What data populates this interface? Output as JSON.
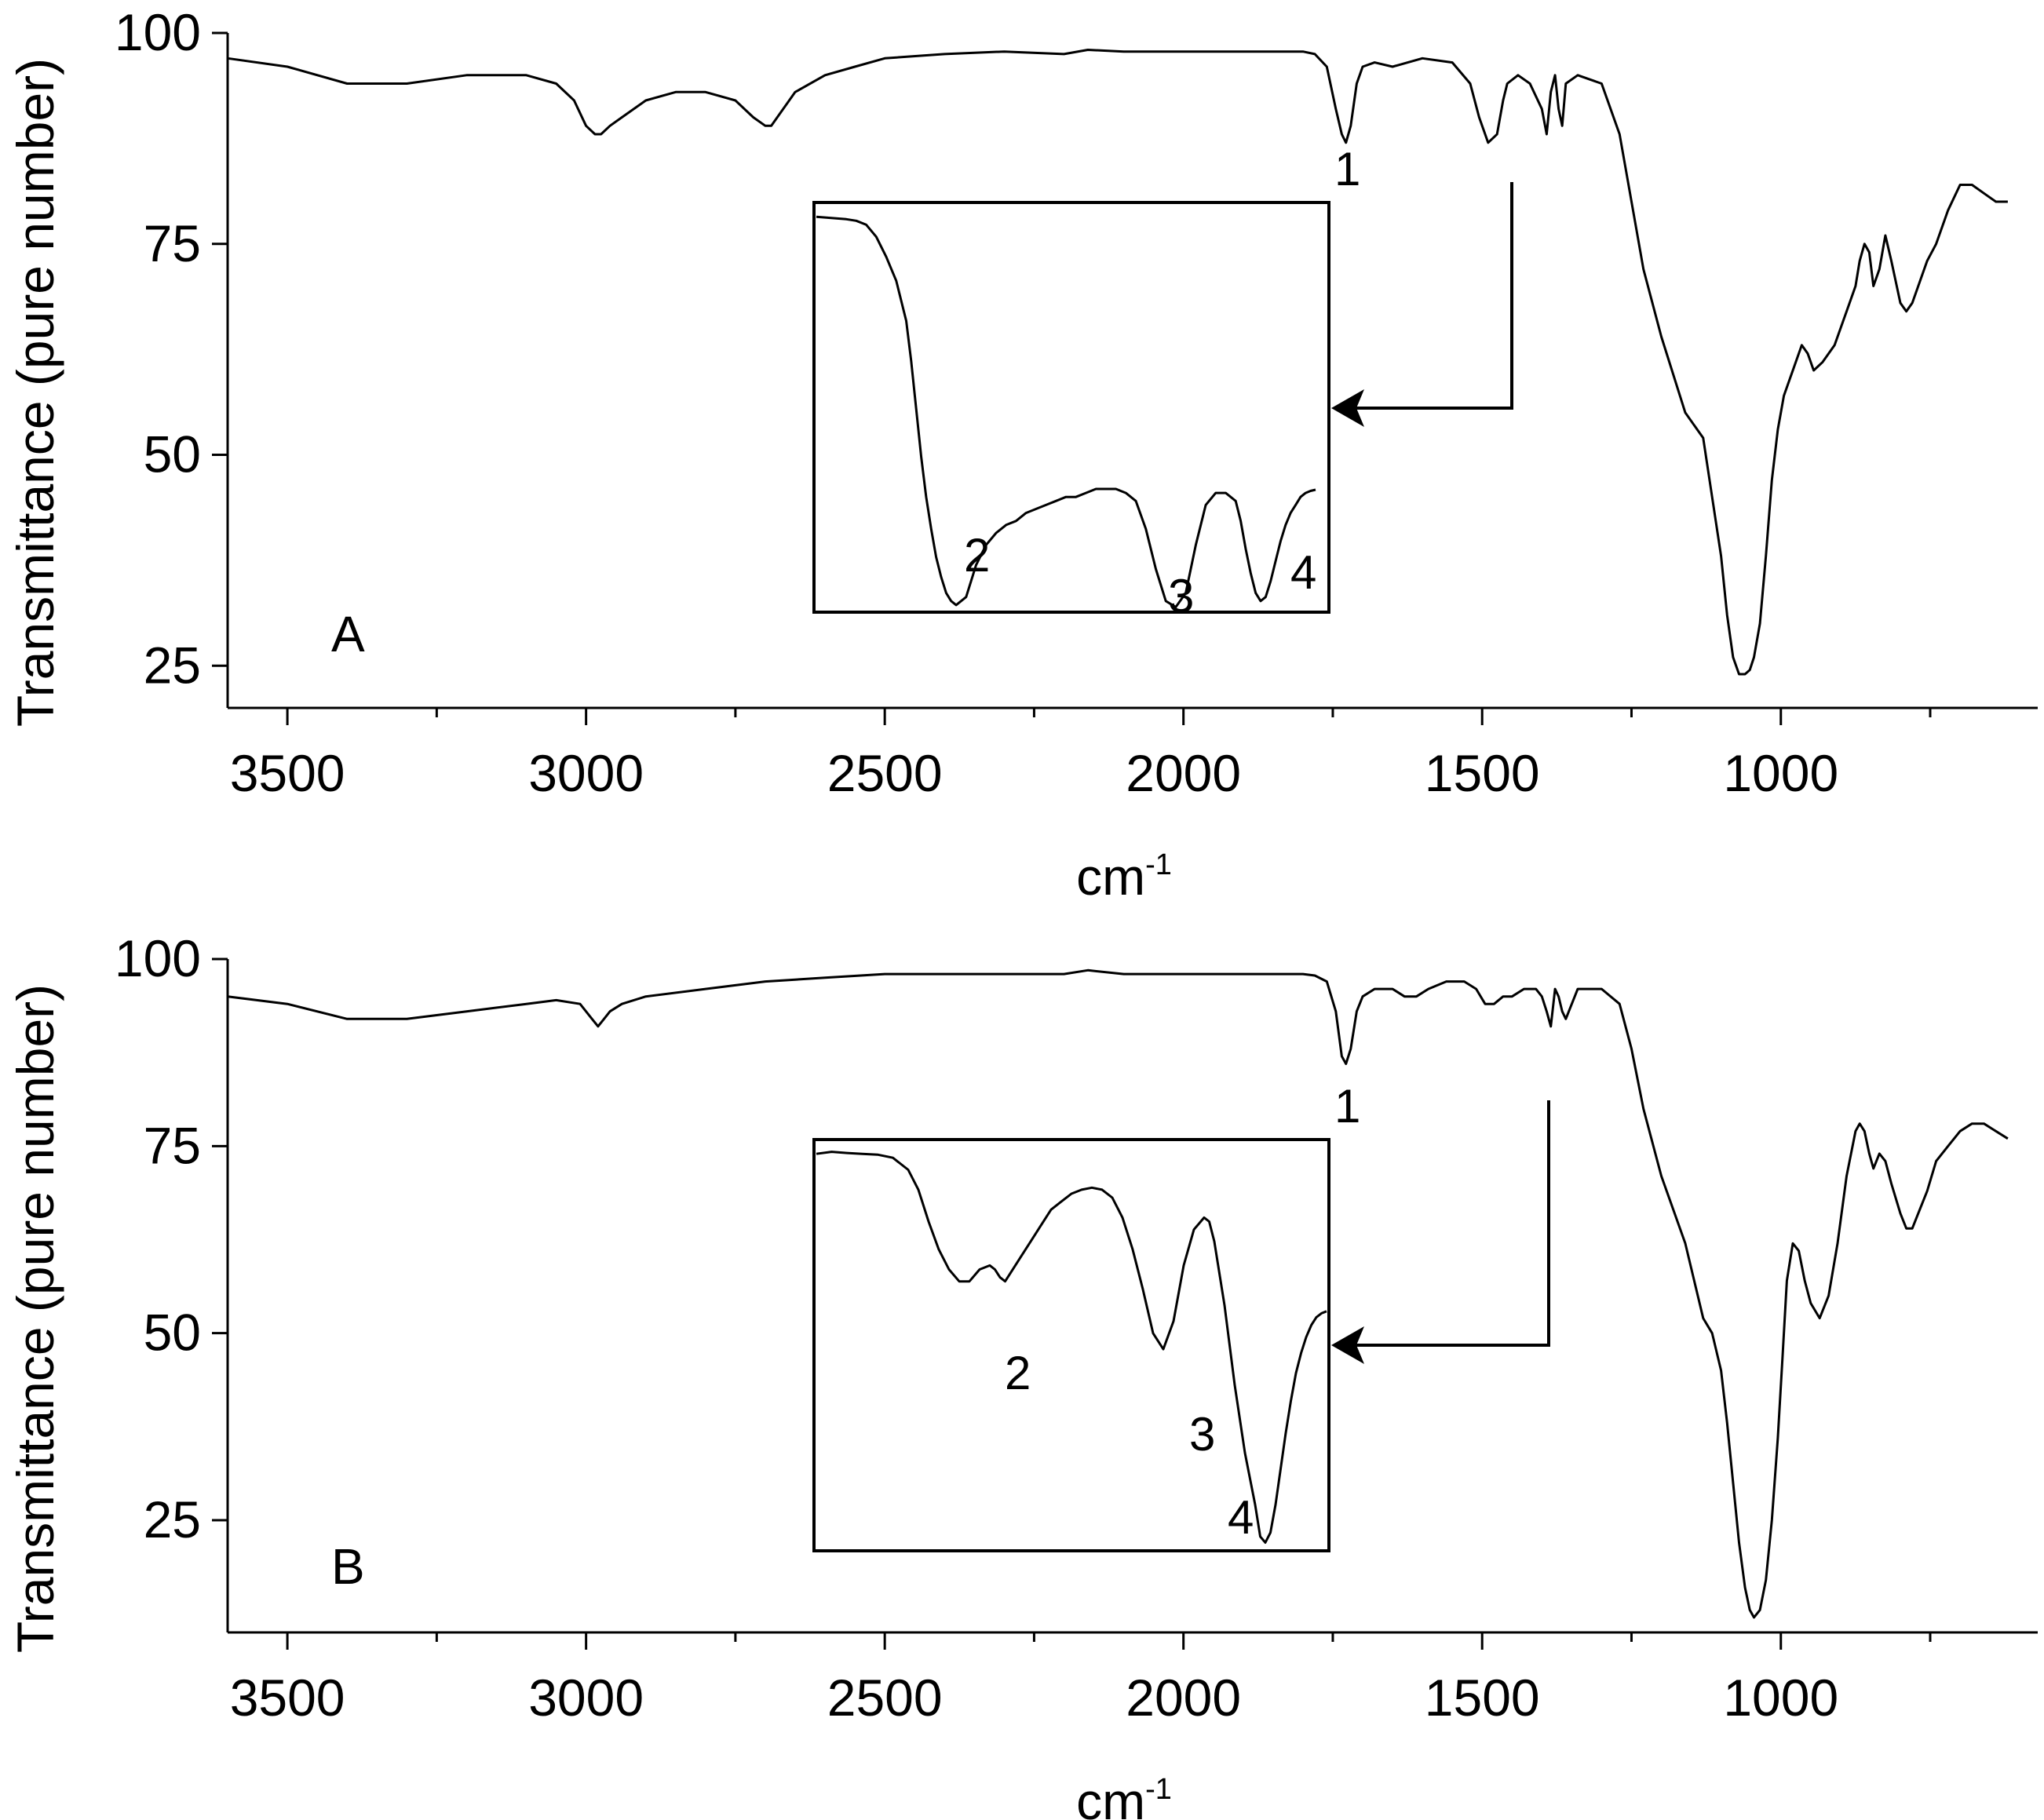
{
  "chart_data": [
    {
      "type": "line",
      "panel_label": "A",
      "xlabel": "cm",
      "xlabel_superscript": "-1",
      "ylabel": "Transmittance (pure number)",
      "xlim": [
        3600,
        570
      ],
      "ylim": [
        20,
        100
      ],
      "x_ticks": [
        3500,
        3000,
        2500,
        2000,
        1500,
        1000
      ],
      "y_ticks": [
        100,
        75,
        50,
        25
      ],
      "series": [
        {
          "x": [
            3600,
            3500,
            3400,
            3300,
            3200,
            3100,
            3050,
            3020,
            3000,
            2985,
            2975,
            2960,
            2940,
            2900,
            2850,
            2800,
            2750,
            2720,
            2700,
            2690,
            2680,
            2650,
            2600,
            2550,
            2500,
            2400,
            2300,
            2200,
            2160,
            2100,
            2000,
            1900,
            1800,
            1780,
            1760,
            1745,
            1735,
            1728,
            1720,
            1710,
            1700,
            1680,
            1650,
            1600,
            1550,
            1520,
            1505,
            1490,
            1475,
            1465,
            1458,
            1440,
            1420,
            1400,
            1392,
            1385,
            1378,
            1372,
            1366,
            1360,
            1340,
            1300,
            1270,
            1250,
            1230,
            1200,
            1160,
            1130,
            1115,
            1100,
            1090,
            1080,
            1070,
            1060,
            1052,
            1045,
            1035,
            1025,
            1015,
            1005,
            995,
            985,
            975,
            965,
            955,
            945,
            930,
            910,
            890,
            875,
            868,
            860,
            852,
            845,
            835,
            825,
            815,
            800,
            790,
            780,
            770,
            755,
            740,
            720,
            700,
            680,
            660,
            640,
            620
          ],
          "y": [
            97,
            96,
            94,
            94,
            95,
            95,
            94,
            92,
            89,
            88,
            88,
            89,
            90,
            92,
            93,
            93,
            92,
            90,
            89,
            89,
            90,
            93,
            95,
            96,
            97,
            97.5,
            97.8,
            97.5,
            98,
            97.8,
            97.8,
            97.8,
            97.8,
            97.5,
            96,
            91,
            88,
            87,
            89,
            94,
            96,
            96.5,
            96,
            97,
            96.5,
            94,
            90,
            87,
            88,
            92,
            94,
            95,
            94,
            91,
            88,
            93,
            95,
            91,
            89,
            94,
            95,
            94,
            88,
            80,
            72,
            64,
            55,
            52,
            45,
            38,
            31,
            26,
            24,
            24,
            24.5,
            26,
            30,
            38,
            47,
            53,
            57,
            59,
            61,
            63,
            62,
            60,
            61,
            63,
            67,
            70,
            73,
            75,
            74,
            70,
            72,
            76,
            73,
            68,
            67,
            68,
            70,
            73,
            75,
            79,
            82,
            82,
            81,
            80,
            80
          ]
        }
      ],
      "inset": {
        "series": [
          {
            "x": [
              0,
              2,
              4,
              6,
              8,
              10,
              12,
              14,
              16,
              18,
              19,
              20,
              21,
              22,
              23,
              24,
              25,
              26,
              27,
              28,
              30,
              32,
              34,
              36,
              38,
              40,
              42,
              44,
              46,
              48,
              50,
              52,
              54,
              56,
              58,
              60,
              62,
              64,
              66,
              68,
              70,
              72,
              74,
              76,
              78,
              80,
              82,
              84,
              85,
              86,
              87,
              88,
              89,
              90,
              91,
              92,
              93,
              94,
              95,
              96,
              97,
              98,
              99,
              100
            ],
            "y": [
              98,
              97.8,
              97.6,
              97.4,
              97,
              96,
              93,
              88,
              82,
              72,
              62,
              50,
              38,
              28,
              20,
              13,
              8,
              4,
              2,
              1,
              3,
              11,
              16,
              19,
              21,
              22,
              24,
              25,
              26,
              27,
              28,
              28,
              29,
              30,
              30,
              30,
              29,
              27,
              20,
              10,
              2,
              0.5,
              4,
              16,
              26,
              29,
              29,
              27,
              22,
              15,
              9,
              4,
              2,
              3,
              7,
              12,
              17,
              21,
              24,
              26,
              28,
              29,
              29.5,
              29.8
            ]
          }
        ]
      },
      "peak_labels": [
        "1",
        "2",
        "3",
        "4"
      ]
    },
    {
      "type": "line",
      "panel_label": "B",
      "xlabel": "cm",
      "xlabel_superscript": "-1",
      "ylabel": "Transmittance (pure number)",
      "xlim": [
        3600,
        570
      ],
      "ylim": [
        10,
        100
      ],
      "x_ticks": [
        3500,
        3000,
        2500,
        2000,
        1500,
        1000
      ],
      "y_ticks": [
        100,
        75,
        50,
        25
      ],
      "series": [
        {
          "x": [
            3600,
            3500,
            3400,
            3300,
            3200,
            3100,
            3050,
            3010,
            2990,
            2980,
            2970,
            2960,
            2940,
            2900,
            2800,
            2700,
            2600,
            2500,
            2400,
            2300,
            2200,
            2160,
            2100,
            2000,
            1900,
            1800,
            1780,
            1760,
            1745,
            1735,
            1728,
            1720,
            1710,
            1700,
            1680,
            1650,
            1630,
            1610,
            1590,
            1560,
            1530,
            1510,
            1495,
            1480,
            1465,
            1450,
            1430,
            1410,
            1400,
            1392,
            1385,
            1378,
            1372,
            1366,
            1360,
            1340,
            1300,
            1270,
            1250,
            1230,
            1200,
            1160,
            1130,
            1115,
            1100,
            1090,
            1080,
            1070,
            1060,
            1052,
            1045,
            1035,
            1025,
            1015,
            1005,
            997,
            990,
            980,
            970,
            960,
            950,
            935,
            920,
            905,
            890,
            875,
            868,
            860,
            852,
            845,
            835,
            825,
            815,
            800,
            790,
            780,
            770,
            755,
            740,
            720,
            700,
            680,
            660,
            640,
            620
          ],
          "y": [
            95,
            94,
            92,
            92,
            93,
            94,
            94.5,
            94,
            92,
            91,
            92,
            93,
            94,
            95,
            96,
            97,
            97.5,
            98,
            98,
            98,
            98,
            98.5,
            98,
            98,
            98,
            98,
            97.8,
            97,
            93,
            87,
            86,
            88,
            93,
            95,
            96,
            96,
            95,
            95,
            96,
            97,
            97,
            96,
            94,
            94,
            95,
            95,
            96,
            96,
            95,
            93,
            91,
            96,
            95,
            93,
            92,
            96,
            96,
            94,
            88,
            80,
            71,
            62,
            52,
            50,
            45,
            38,
            30,
            22,
            16,
            13,
            12,
            13,
            17,
            25,
            36,
            47,
            57,
            62,
            61,
            57,
            54,
            52,
            55,
            62,
            71,
            77,
            78,
            77,
            74,
            72,
            74,
            73,
            70,
            66,
            64,
            64,
            66,
            69,
            73,
            75,
            77,
            78,
            78,
            77,
            76
          ]
        }
      ],
      "inset": {
        "series": [
          {
            "x": [
              0,
              3,
              6,
              9,
              12,
              15,
              18,
              20,
              22,
              24,
              26,
              28,
              30,
              32,
              34,
              35,
              36,
              37,
              38,
              40,
              42,
              44,
              46,
              48,
              50,
              52,
              54,
              56,
              58,
              60,
              62,
              64,
              66,
              68,
              70,
              72,
              74,
              76,
              77,
              78,
              80,
              82,
              84,
              86,
              87,
              88,
              89,
              90,
              91,
              92,
              93,
              94,
              95,
              96,
              97,
              98,
              99,
              100
            ],
            "y": [
              98,
              98.5,
              98.2,
              98,
              97.8,
              97,
              94,
              89,
              81,
              74,
              69,
              66,
              66,
              69,
              70,
              69,
              67,
              66,
              68,
              72,
              76,
              80,
              84,
              86,
              88,
              89,
              89.5,
              89,
              87,
              82,
              74,
              64,
              53,
              49,
              56,
              70,
              79,
              82,
              81,
              76,
              60,
              40,
              23,
              10,
              2,
              0.5,
              3,
              10,
              19,
              28,
              36,
              43,
              48,
              52,
              55,
              57,
              58,
              58.5
            ]
          }
        ]
      },
      "peak_labels": [
        "1",
        "2",
        "3",
        "4"
      ]
    }
  ]
}
